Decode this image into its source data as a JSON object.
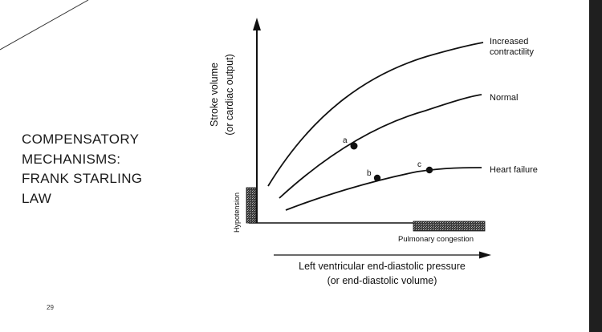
{
  "slide": {
    "title_lines": [
      "COMPENSATORY",
      "MECHANISMS:",
      "FRANK STARLING",
      "LAW"
    ],
    "page_number": "29"
  },
  "figure": {
    "y_axis_label_line1": "Stroke volume",
    "y_axis_label_line2": "(or cardiac output)",
    "x_axis_label_line1": "Left ventricular end-diastolic pressure",
    "x_axis_label_line2": "(or end-diastolic volume)",
    "hypotension_label": "Hypotension",
    "congestion_label": "Pulmonary congestion",
    "curves": {
      "increased": {
        "label_line1": "Increased",
        "label_line2": "contractility"
      },
      "normal": {
        "label": "Normal"
      },
      "failure": {
        "label": "Heart failure"
      }
    },
    "points": {
      "a": "a",
      "b": "b",
      "c": "c"
    }
  },
  "colors": {
    "background": "#ffffff",
    "ink": "#111111",
    "right_bar": "#1f1f1f"
  }
}
